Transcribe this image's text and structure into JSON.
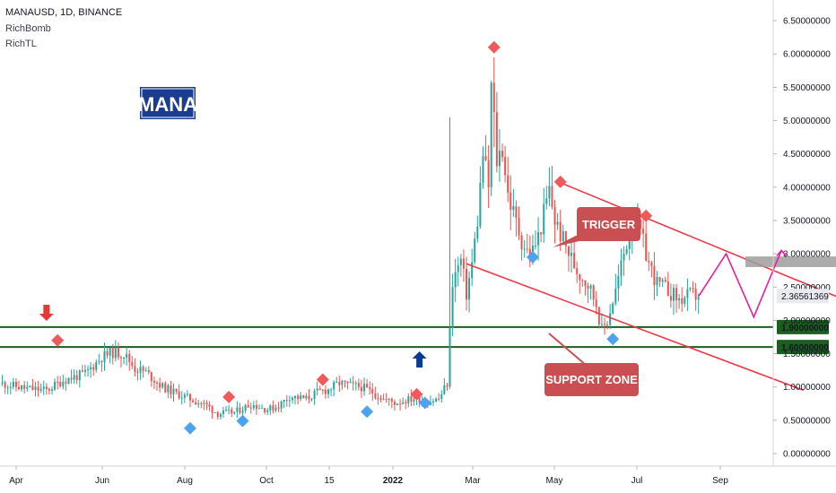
{
  "header": {
    "symbol_line": "MANAUSD, 1D, BINANCE",
    "indicators": [
      "RichBomb",
      "RichTL"
    ]
  },
  "labels": {
    "mana": "MANA",
    "trigger": "TRIGGER",
    "support_zone": "SUPPORT ZONE"
  },
  "colors": {
    "up": "#26a69a",
    "down": "#ef5350",
    "channel": "#f23645",
    "support": "#1b5e20",
    "projection": "#e91e9c",
    "mana_box": "#1a3d8f",
    "callout": "#c94f52",
    "marker_red": "#f05a5a",
    "marker_blue": "#4ea3f0",
    "arrow_red": "#e53935",
    "arrow_blue": "#0d3a91"
  },
  "chart_data": {
    "type": "candlestick",
    "symbol": "MANAUSD",
    "interval": "1D",
    "exchange": "BINANCE",
    "x_ticks": [
      "Apr",
      "Jun",
      "Aug",
      "Oct",
      "15",
      "2022",
      "Mar",
      "May",
      "Jul",
      "Sep"
    ],
    "y_ticks": [
      "0.00000000",
      "0.50000000",
      "1.00000000",
      "1.50000000",
      "2.00000000",
      "2.50000000",
      "3.00000000",
      "3.50000000",
      "4.00000000",
      "4.50000000",
      "5.00000000",
      "5.50000000",
      "6.00000000",
      "6.50000000"
    ],
    "ylim": [
      -0.2,
      7.0
    ],
    "last_price": "2.36561369",
    "support_levels": [
      "1.90000000",
      "1.60000000"
    ],
    "price_path": [
      [
        0,
        1.05
      ],
      [
        8,
        0.98
      ],
      [
        16,
        0.95
      ],
      [
        22,
        1.1
      ],
      [
        30,
        1.2
      ],
      [
        36,
        1.45
      ],
      [
        40,
        1.52
      ],
      [
        44,
        1.5
      ],
      [
        48,
        1.28
      ],
      [
        52,
        1.22
      ],
      [
        58,
        1.0
      ],
      [
        62,
        0.92
      ],
      [
        68,
        0.82
      ],
      [
        74,
        0.72
      ],
      [
        78,
        0.6
      ],
      [
        84,
        0.62
      ],
      [
        90,
        0.74
      ],
      [
        96,
        0.66
      ],
      [
        100,
        0.72
      ],
      [
        104,
        0.86
      ],
      [
        110,
        0.82
      ],
      [
        114,
        0.92
      ],
      [
        118,
        0.96
      ],
      [
        122,
        1.06
      ],
      [
        126,
        1.02
      ],
      [
        130,
        1.0
      ],
      [
        134,
        0.92
      ],
      [
        138,
        0.82
      ],
      [
        142,
        0.76
      ],
      [
        146,
        0.8
      ],
      [
        150,
        0.84
      ],
      [
        154,
        0.78
      ],
      [
        158,
        0.82
      ],
      [
        161,
        1.05
      ],
      [
        163,
        2.6
      ],
      [
        166,
        2.9
      ],
      [
        168,
        2.4
      ],
      [
        170,
        2.85
      ],
      [
        172,
        3.5
      ],
      [
        174,
        4.5
      ],
      [
        176,
        4.0
      ],
      [
        177,
        5.5
      ],
      [
        178,
        5.0
      ],
      [
        179,
        4.4
      ],
      [
        181,
        4.6
      ],
      [
        183,
        3.9
      ],
      [
        185,
        3.6
      ],
      [
        188,
        3.2
      ],
      [
        191,
        2.95
      ],
      [
        194,
        3.25
      ],
      [
        196,
        3.6
      ],
      [
        198,
        3.95
      ],
      [
        200,
        3.5
      ],
      [
        204,
        3.1
      ],
      [
        208,
        2.75
      ],
      [
        212,
        2.55
      ],
      [
        215,
        2.25
      ],
      [
        217,
        1.85
      ],
      [
        219,
        2.0
      ],
      [
        222,
        2.45
      ],
      [
        225,
        3.0
      ],
      [
        228,
        3.5
      ],
      [
        231,
        3.3
      ],
      [
        234,
        2.85
      ],
      [
        237,
        2.55
      ],
      [
        241,
        2.45
      ],
      [
        245,
        2.3
      ],
      [
        249,
        2.38
      ],
      [
        252,
        2.37
      ]
    ],
    "projection_path": [
      [
        252,
        2.36
      ],
      [
        262,
        3.0
      ],
      [
        272,
        2.05
      ],
      [
        282,
        3.05
      ]
    ],
    "channel_lines": [
      {
        "from": [
          203,
          4.05
        ],
        "to": [
          320,
          2.05
        ]
      },
      {
        "from": [
          168,
          2.85
        ],
        "to": [
          290,
          0.95
        ]
      }
    ],
    "signals": [
      {
        "type": "sell",
        "x": 20,
        "y": 1.7
      },
      {
        "type": "buy",
        "x": 68,
        "y": 0.38
      },
      {
        "type": "buy",
        "x": 87,
        "y": 0.49
      },
      {
        "type": "sell",
        "x": 82,
        "y": 0.85
      },
      {
        "type": "sell",
        "x": 116,
        "y": 1.11
      },
      {
        "type": "buy",
        "x": 132,
        "y": 0.63
      },
      {
        "type": "sell",
        "x": 150,
        "y": 0.89
      },
      {
        "type": "buy",
        "x": 153,
        "y": 0.76
      },
      {
        "type": "sell",
        "x": 178,
        "y": 6.1
      },
      {
        "type": "buy",
        "x": 192,
        "y": 2.95
      },
      {
        "type": "sell",
        "x": 202,
        "y": 4.08
      },
      {
        "type": "sell",
        "x": 233,
        "y": 3.57
      },
      {
        "type": "buy",
        "x": 221,
        "y": 1.72
      }
    ],
    "trigger_zone": {
      "x": [
        269,
        303
      ],
      "y": [
        2.8,
        2.96
      ]
    }
  }
}
